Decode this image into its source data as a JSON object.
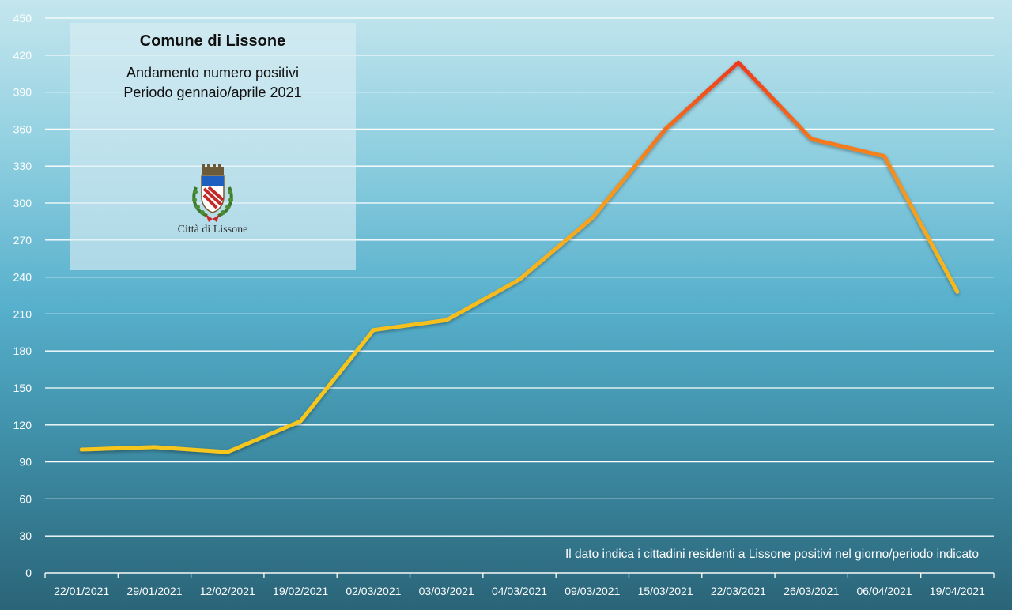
{
  "info": {
    "title": "Comune di Lissone",
    "subtitle_line1": "Andamento numero positivi",
    "subtitle_line2": "Periodo gennaio/aprile 2021",
    "crest_caption": "Città di Lissone"
  },
  "note": "Il dato indica i cittadini residenti a Lissone positivi nel giorno/periodo indicato",
  "chart_data": {
    "type": "line",
    "categories": [
      "22/01/2021",
      "29/01/2021",
      "12/02/2021",
      "19/02/2021",
      "02/03/2021",
      "03/03/2021",
      "04/03/2021",
      "09/03/2021",
      "15/03/2021",
      "22/03/2021",
      "26/03/2021",
      "06/04/2021",
      "19/04/2021"
    ],
    "series": [
      {
        "values": [
          100,
          102,
          98,
          123,
          197,
          205,
          238,
          288,
          360,
          414,
          352,
          338,
          228
        ]
      }
    ],
    "ylim": [
      0,
      450
    ],
    "yticks": [
      0,
      30,
      60,
      90,
      120,
      150,
      180,
      210,
      240,
      270,
      300,
      330,
      360,
      390,
      420,
      450
    ],
    "grid": true,
    "line_colors": {
      "low": "#f7c61e",
      "mid": "#f58a1e",
      "high": "#ee3a1c"
    },
    "grid_color": "#ffffff"
  }
}
